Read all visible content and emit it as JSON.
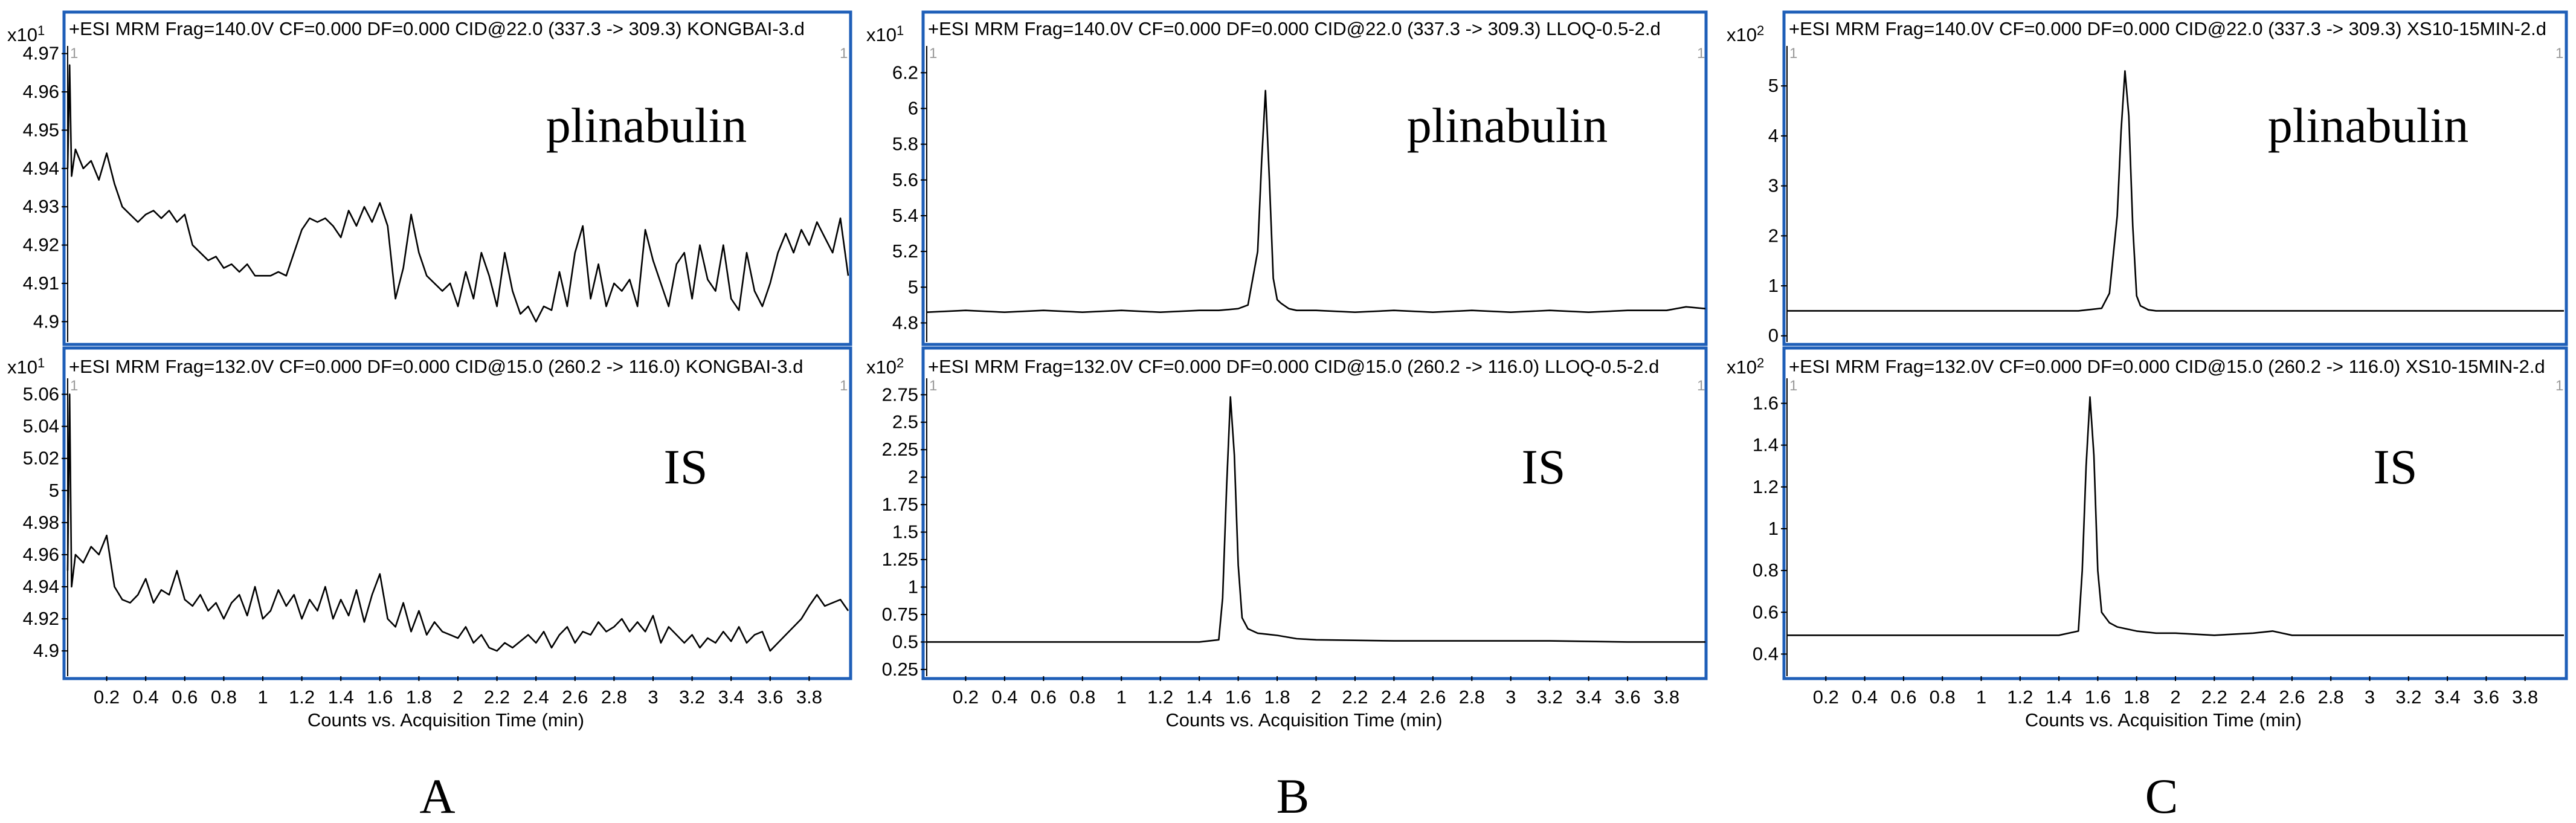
{
  "chart_data": [
    {
      "type": "line",
      "panel": "A",
      "header": "+ESI MRM Frag=140.0V CF=0.000 DF=0.000 CID@22.0 (337.3 -> 309.3) KONGBAI-3.d",
      "annotation": "plinabulin",
      "y_scale": {
        "base": "x10",
        "exp": "1"
      },
      "xlim": [
        0.0,
        4.0
      ],
      "ylim": [
        4.895,
        4.972
      ],
      "yticks": [
        4.9,
        4.91,
        4.92,
        4.93,
        4.94,
        4.95,
        4.96,
        4.97
      ],
      "ytick_labels": [
        "4.9",
        "4.91",
        "4.92",
        "4.93",
        "4.94",
        "4.95",
        "4.96",
        "4.97"
      ],
      "x": [
        0.0,
        0.01,
        0.02,
        0.04,
        0.08,
        0.12,
        0.16,
        0.2,
        0.24,
        0.28,
        0.32,
        0.36,
        0.4,
        0.44,
        0.48,
        0.52,
        0.56,
        0.6,
        0.64,
        0.68,
        0.72,
        0.76,
        0.8,
        0.84,
        0.88,
        0.92,
        0.96,
        1.0,
        1.04,
        1.08,
        1.12,
        1.16,
        1.2,
        1.24,
        1.28,
        1.32,
        1.36,
        1.4,
        1.44,
        1.48,
        1.52,
        1.56,
        1.6,
        1.64,
        1.68,
        1.72,
        1.76,
        1.8,
        1.84,
        1.88,
        1.92,
        1.96,
        2.0,
        2.04,
        2.08,
        2.12,
        2.16,
        2.2,
        2.24,
        2.28,
        2.32,
        2.36,
        2.4,
        2.44,
        2.48,
        2.52,
        2.56,
        2.6,
        2.64,
        2.68,
        2.72,
        2.76,
        2.8,
        2.84,
        2.88,
        2.92,
        2.96,
        3.0,
        3.04,
        3.08,
        3.12,
        3.16,
        3.2,
        3.24,
        3.28,
        3.32,
        3.36,
        3.4,
        3.44,
        3.48,
        3.52,
        3.56,
        3.6,
        3.64,
        3.68,
        3.72,
        3.76,
        3.8,
        3.84,
        3.88,
        3.92,
        3.96,
        4.0
      ],
      "series": [
        {
          "values": [
            4.94,
            4.967,
            4.938,
            4.945,
            4.94,
            4.942,
            4.937,
            4.944,
            4.936,
            4.93,
            4.928,
            4.926,
            4.928,
            4.929,
            4.927,
            4.929,
            4.926,
            4.928,
            4.92,
            4.918,
            4.916,
            4.917,
            4.914,
            4.915,
            4.913,
            4.915,
            4.912,
            4.912,
            4.912,
            4.913,
            4.912,
            4.918,
            4.924,
            4.927,
            4.926,
            4.927,
            4.925,
            4.922,
            4.929,
            4.925,
            4.93,
            4.926,
            4.931,
            4.925,
            4.906,
            4.914,
            4.928,
            4.918,
            4.912,
            4.91,
            4.908,
            4.91,
            4.904,
            4.913,
            4.906,
            4.918,
            4.912,
            4.904,
            4.918,
            4.908,
            4.902,
            4.904,
            4.9,
            4.904,
            4.903,
            4.913,
            4.904,
            4.918,
            4.925,
            4.906,
            4.915,
            4.904,
            4.91,
            4.908,
            4.911,
            4.904,
            4.924,
            4.916,
            4.91,
            4.904,
            4.915,
            4.918,
            4.906,
            4.92,
            4.911,
            4.908,
            4.92,
            4.906,
            4.903,
            4.918,
            4.908,
            4.904,
            4.91,
            4.918,
            4.923,
            4.918,
            4.924,
            4.92,
            4.926,
            4.922,
            4.918,
            4.927,
            4.912
          ]
        }
      ]
    },
    {
      "type": "line",
      "panel": "A",
      "header": "+ESI MRM Frag=132.0V CF=0.000 DF=0.000 CID@15.0 (260.2 -> 116.0) KONGBAI-3.d",
      "annotation": "IS",
      "y_scale": {
        "base": "x10",
        "exp": "1"
      },
      "xlim": [
        0.0,
        4.0
      ],
      "ylim": [
        4.885,
        5.07
      ],
      "yticks": [
        4.9,
        4.92,
        4.94,
        4.96,
        4.98,
        5.0,
        5.02,
        5.04,
        5.06
      ],
      "ytick_labels": [
        "4.9",
        "4.92",
        "4.94",
        "4.96",
        "4.98",
        "5",
        "5.02",
        "5.04",
        "5.06"
      ],
      "x": [
        0.0,
        0.01,
        0.02,
        0.04,
        0.08,
        0.12,
        0.16,
        0.2,
        0.24,
        0.28,
        0.32,
        0.36,
        0.4,
        0.44,
        0.48,
        0.52,
        0.56,
        0.6,
        0.64,
        0.68,
        0.72,
        0.76,
        0.8,
        0.84,
        0.88,
        0.92,
        0.96,
        1.0,
        1.04,
        1.08,
        1.12,
        1.16,
        1.2,
        1.24,
        1.28,
        1.32,
        1.36,
        1.4,
        1.44,
        1.48,
        1.52,
        1.56,
        1.6,
        1.64,
        1.68,
        1.72,
        1.76,
        1.8,
        1.84,
        1.88,
        1.92,
        1.96,
        2.0,
        2.04,
        2.08,
        2.12,
        2.16,
        2.2,
        2.24,
        2.28,
        2.32,
        2.36,
        2.4,
        2.44,
        2.48,
        2.52,
        2.56,
        2.6,
        2.64,
        2.68,
        2.72,
        2.76,
        2.8,
        2.84,
        2.88,
        2.92,
        2.96,
        3.0,
        3.04,
        3.08,
        3.12,
        3.16,
        3.2,
        3.24,
        3.28,
        3.32,
        3.36,
        3.4,
        3.44,
        3.48,
        3.52,
        3.56,
        3.6,
        3.64,
        3.68,
        3.72,
        3.76,
        3.8,
        3.84,
        3.88,
        3.92,
        3.96,
        4.0
      ],
      "series": [
        {
          "values": [
            4.95,
            5.06,
            4.94,
            4.96,
            4.955,
            4.965,
            4.96,
            4.972,
            4.94,
            4.932,
            4.93,
            4.935,
            4.945,
            4.93,
            4.938,
            4.935,
            4.95,
            4.932,
            4.928,
            4.935,
            4.925,
            4.93,
            4.92,
            4.93,
            4.935,
            4.922,
            4.94,
            4.92,
            4.925,
            4.938,
            4.928,
            4.935,
            4.92,
            4.932,
            4.925,
            4.94,
            4.92,
            4.932,
            4.922,
            4.938,
            4.918,
            4.935,
            4.948,
            4.92,
            4.915,
            4.93,
            4.912,
            4.925,
            4.91,
            4.918,
            4.912,
            4.91,
            4.908,
            4.915,
            4.905,
            4.91,
            4.902,
            4.9,
            4.905,
            4.902,
            4.906,
            4.91,
            4.905,
            4.912,
            4.902,
            4.91,
            4.915,
            4.905,
            4.912,
            4.91,
            4.918,
            4.912,
            4.915,
            4.92,
            4.912,
            4.918,
            4.912,
            4.922,
            4.905,
            4.915,
            4.91,
            4.905,
            4.91,
            4.902,
            4.908,
            4.905,
            4.912,
            4.906,
            4.915,
            4.905,
            4.91,
            4.912,
            4.9,
            4.905,
            4.91,
            4.915,
            4.92,
            4.928,
            4.935,
            4.928,
            4.93,
            4.932,
            4.925
          ]
        }
      ]
    },
    {
      "type": "line",
      "panel": "B",
      "header": "+ESI MRM Frag=140.0V CF=0.000 DF=0.000 CID@22.0 (337.3 -> 309.3) LLOQ-0.5-2.d",
      "annotation": "plinabulin",
      "y_scale": {
        "base": "x10",
        "exp": "1"
      },
      "xlim": [
        0.0,
        4.0
      ],
      "ylim": [
        4.7,
        6.35
      ],
      "yticks": [
        4.8,
        5.0,
        5.2,
        5.4,
        5.6,
        5.8,
        6.0,
        6.2
      ],
      "ytick_labels": [
        "4.8",
        "5",
        "5.2",
        "5.4",
        "5.6",
        "5.8",
        "6",
        "6.2"
      ],
      "x": [
        0.0,
        0.2,
        0.4,
        0.6,
        0.8,
        1.0,
        1.2,
        1.4,
        1.5,
        1.6,
        1.65,
        1.7,
        1.72,
        1.74,
        1.76,
        1.78,
        1.8,
        1.82,
        1.86,
        1.9,
        2.0,
        2.2,
        2.4,
        2.6,
        2.8,
        3.0,
        3.2,
        3.4,
        3.6,
        3.8,
        3.9,
        4.0
      ],
      "series": [
        {
          "values": [
            4.86,
            4.87,
            4.86,
            4.87,
            4.86,
            4.87,
            4.86,
            4.87,
            4.87,
            4.88,
            4.9,
            5.2,
            5.7,
            6.1,
            5.6,
            5.05,
            4.93,
            4.91,
            4.88,
            4.87,
            4.87,
            4.86,
            4.87,
            4.86,
            4.87,
            4.86,
            4.87,
            4.86,
            4.87,
            4.87,
            4.89,
            4.88
          ]
        }
      ]
    },
    {
      "type": "line",
      "panel": "B",
      "header": "+ESI MRM Frag=132.0V CF=0.000 DF=0.000 CID@15.0 (260.2 -> 116.0) LLOQ-0.5-2.d",
      "annotation": "IS",
      "y_scale": {
        "base": "x10",
        "exp": "2"
      },
      "xlim": [
        0.0,
        4.0
      ],
      "ylim": [
        0.2,
        2.9
      ],
      "yticks": [
        0.25,
        0.5,
        0.75,
        1.0,
        1.25,
        1.5,
        1.75,
        2.0,
        2.25,
        2.5,
        2.75
      ],
      "ytick_labels": [
        "0.25",
        "0.5",
        "0.75",
        "1",
        "1.25",
        "1.5",
        "1.75",
        "2",
        "2.25",
        "2.5",
        "2.75"
      ],
      "x": [
        0.0,
        0.4,
        0.8,
        1.2,
        1.4,
        1.5,
        1.52,
        1.54,
        1.56,
        1.58,
        1.6,
        1.62,
        1.65,
        1.7,
        1.75,
        1.8,
        1.9,
        2.0,
        2.4,
        2.8,
        3.2,
        3.6,
        4.0
      ],
      "series": [
        {
          "values": [
            0.5,
            0.5,
            0.5,
            0.5,
            0.5,
            0.52,
            0.9,
            1.9,
            2.73,
            2.2,
            1.2,
            0.72,
            0.62,
            0.58,
            0.57,
            0.56,
            0.53,
            0.52,
            0.51,
            0.51,
            0.51,
            0.5,
            0.5
          ]
        }
      ]
    },
    {
      "type": "line",
      "panel": "C",
      "header": "+ESI MRM Frag=140.0V CF=0.000 DF=0.000 CID@22.0 (337.3 -> 309.3) XS10-15MIN-2.d",
      "annotation": "plinabulin",
      "y_scale": {
        "base": "x10",
        "exp": "2"
      },
      "xlim": [
        0.0,
        4.0
      ],
      "ylim": [
        -0.1,
        5.8
      ],
      "yticks": [
        0,
        1,
        2,
        3,
        4,
        5
      ],
      "ytick_labels": [
        "0",
        "1",
        "2",
        "3",
        "4",
        "5"
      ],
      "x": [
        0.0,
        0.4,
        0.8,
        1.2,
        1.5,
        1.62,
        1.66,
        1.7,
        1.72,
        1.74,
        1.76,
        1.78,
        1.8,
        1.82,
        1.86,
        1.9,
        2.0,
        2.4,
        2.8,
        3.2,
        3.6,
        4.0
      ],
      "series": [
        {
          "values": [
            0.5,
            0.5,
            0.5,
            0.5,
            0.5,
            0.55,
            0.85,
            2.4,
            4.1,
            5.3,
            4.4,
            2.2,
            0.8,
            0.6,
            0.52,
            0.5,
            0.5,
            0.5,
            0.5,
            0.5,
            0.5,
            0.5
          ]
        }
      ]
    },
    {
      "type": "line",
      "panel": "C",
      "header": "+ESI MRM Frag=132.0V CF=0.000 DF=0.000 CID@15.0 (260.2 -> 116.0) XS10-15MIN-2.d",
      "annotation": "IS",
      "y_scale": {
        "base": "x10",
        "exp": "2"
      },
      "xlim": [
        0.0,
        4.0
      ],
      "ylim": [
        0.3,
        1.72
      ],
      "yticks": [
        0.4,
        0.6,
        0.8,
        1.0,
        1.2,
        1.4,
        1.6
      ],
      "ytick_labels": [
        "0.4",
        "0.6",
        "0.8",
        "1",
        "1.2",
        "1.4",
        "1.6"
      ],
      "x": [
        0.0,
        0.4,
        0.8,
        1.2,
        1.4,
        1.5,
        1.52,
        1.54,
        1.56,
        1.58,
        1.6,
        1.62,
        1.66,
        1.7,
        1.8,
        1.9,
        2.0,
        2.2,
        2.4,
        2.5,
        2.6,
        2.8,
        3.2,
        3.6,
        4.0
      ],
      "series": [
        {
          "values": [
            0.49,
            0.49,
            0.49,
            0.49,
            0.49,
            0.51,
            0.8,
            1.3,
            1.63,
            1.35,
            0.8,
            0.6,
            0.55,
            0.53,
            0.51,
            0.5,
            0.5,
            0.49,
            0.5,
            0.51,
            0.49,
            0.49,
            0.49,
            0.49,
            0.49
          ]
        }
      ]
    }
  ],
  "xaxis": {
    "label": "Counts vs. Acquisition Time (min)",
    "ticks": [
      0.2,
      0.4,
      0.6,
      0.8,
      1.0,
      1.2,
      1.4,
      1.6,
      1.8,
      2.0,
      2.2,
      2.4,
      2.6,
      2.8,
      3.0,
      3.2,
      3.4,
      3.6,
      3.8
    ],
    "tick_labels": [
      "0.2",
      "0.4",
      "0.6",
      "0.8",
      "1",
      "1.2",
      "1.4",
      "1.6",
      "1.8",
      "2",
      "2.2",
      "2.4",
      "2.6",
      "2.8",
      "3",
      "3.2",
      "3.4",
      "3.6",
      "3.8"
    ]
  },
  "panel_letters": [
    "A",
    "B",
    "C"
  ],
  "corner_label": "1",
  "colors": {
    "frame": "#1f5fb8",
    "trace": "#000000"
  }
}
